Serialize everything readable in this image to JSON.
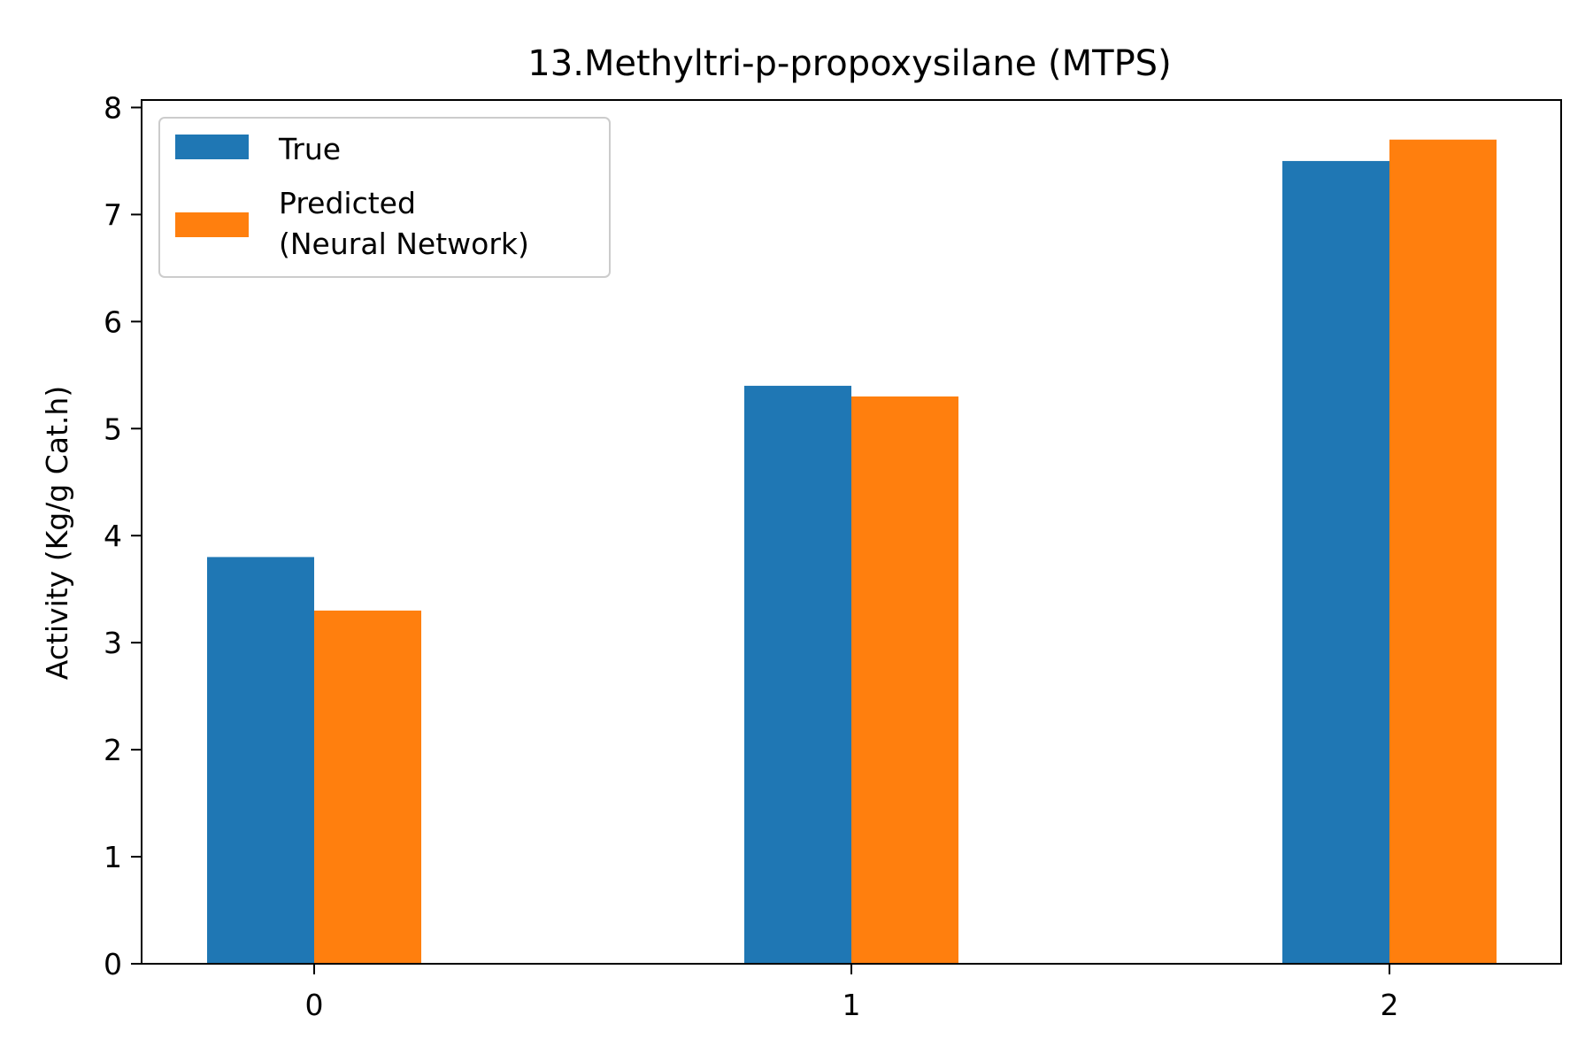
{
  "chart_data": {
    "type": "bar",
    "title": "13.Methyltri-p-propoxysilane (MTPS)",
    "xlabel": "",
    "ylabel": "Activity (Kg/g Cat.h)",
    "categories": [
      "0",
      "1",
      "2"
    ],
    "series": [
      {
        "name": "True",
        "color": "#1f77b4",
        "values": [
          3.8,
          5.4,
          7.5
        ]
      },
      {
        "name": "Predicted\n(Neural Network)",
        "color": "#ff7f0e",
        "values": [
          3.3,
          5.3,
          7.7
        ]
      }
    ],
    "ylim": [
      0,
      8.07
    ],
    "yticks": [
      "0",
      "1",
      "2",
      "3",
      "4",
      "5",
      "6",
      "7",
      "8"
    ],
    "legend": {
      "position": "top-left",
      "labels": [
        "True",
        "Predicted",
        "(Neural Network)"
      ]
    },
    "grid": false
  }
}
